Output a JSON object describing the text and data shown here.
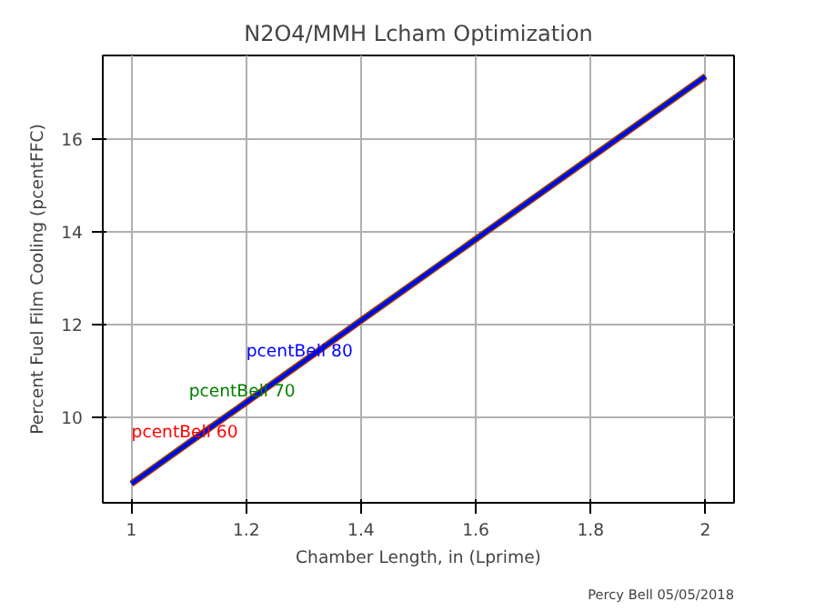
{
  "chart_data": {
    "type": "line",
    "title": "N2O4/MMH Lcham Optimization",
    "xlabel": "Chamber Length, in (Lprime)",
    "ylabel": "Percent Fuel Film Cooling (pcentFFC)",
    "x": [
      1.0,
      1.1,
      1.2,
      1.4,
      1.6,
      1.8,
      2.0
    ],
    "series": [
      {
        "name": "pcentBell 60",
        "color": "#ff0000",
        "values": [
          8.58,
          9.46,
          10.33,
          12.09,
          13.84,
          15.59,
          17.34
        ]
      },
      {
        "name": "pcentBell 70",
        "color": "#008000",
        "values": [
          8.58,
          9.46,
          10.33,
          12.09,
          13.84,
          15.59,
          17.34
        ]
      },
      {
        "name": "pcentBell 80",
        "color": "#0000ff",
        "values": [
          8.58,
          9.46,
          10.33,
          12.09,
          13.84,
          15.59,
          17.34
        ]
      }
    ],
    "xlim": [
      0.95,
      2.05
    ],
    "ylim": [
      8.17,
      17.79
    ],
    "xticks": [
      1,
      1.2,
      1.4,
      1.6,
      1.8,
      2
    ],
    "yticks": [
      10,
      12,
      14,
      16
    ],
    "grid": true,
    "line_style": "solid",
    "annotations": [
      "Percy Bell 05/05/2018"
    ]
  }
}
